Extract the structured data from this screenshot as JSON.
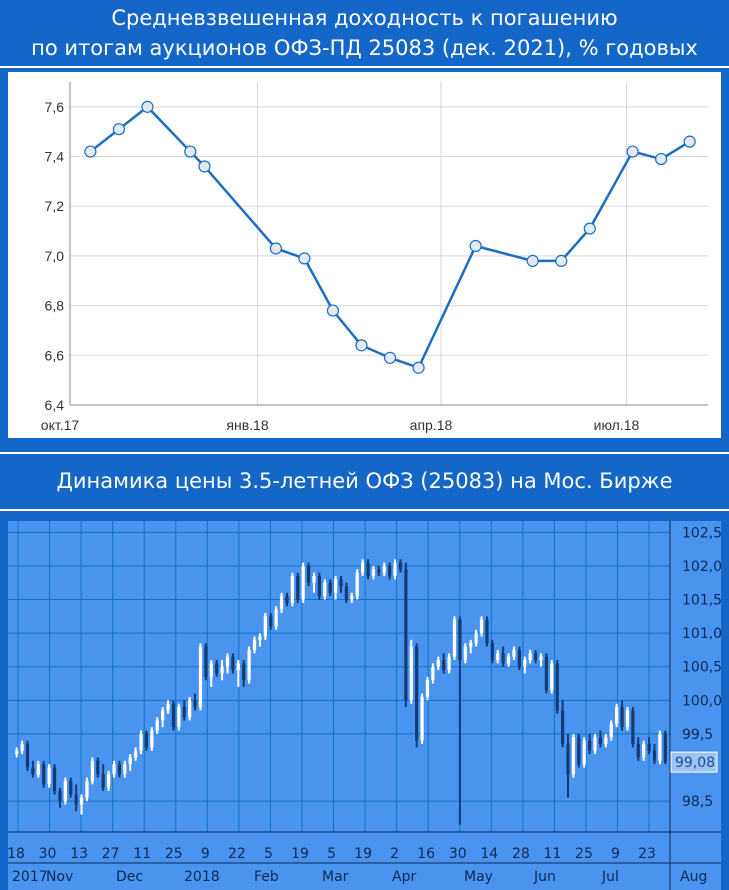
{
  "chart_data": [
    {
      "type": "line",
      "title": "Средневзвешенная доходность к погашению\nпо итогам аукционов ОФЗ-ПД 25083 (дек. 2021), % годовых",
      "title_lines": [
        "Средневзвешенная доходность к погашению",
        "по итогам аукционов ОФЗ-ПД 25083 (дек. 2021), % годовых"
      ],
      "x_tick_labels": [
        "окт.17",
        "янв.18",
        "апр.18",
        "июл.18"
      ],
      "y_tick_labels": [
        "6,4",
        "6,6",
        "6,8",
        "7,0",
        "7,2",
        "7,4",
        "7,6"
      ],
      "ylim": [
        6.4,
        7.7
      ],
      "grid": true,
      "series": [
        {
          "x": [
            "2017-10-11",
            "2017-10-25",
            "2017-11-08",
            "2017-11-29",
            "2017-12-06",
            "2018-01-10",
            "2018-01-24",
            "2018-02-07",
            "2018-02-21",
            "2018-03-07",
            "2018-03-21",
            "2018-04-18",
            "2018-05-16",
            "2018-05-30",
            "2018-06-13",
            "2018-07-04",
            "2018-07-18",
            "2018-08-01"
          ],
          "values": [
            7.42,
            7.51,
            7.6,
            7.42,
            7.36,
            7.03,
            6.99,
            6.78,
            6.64,
            6.59,
            6.55,
            7.04,
            6.98,
            6.98,
            7.11,
            7.42,
            7.39,
            7.46
          ]
        }
      ],
      "colors": {
        "line": "#1a6fc4",
        "marker_fill": "#e4eaf0",
        "marker_stroke": "#1a6fc4",
        "grid": "#d8d8d8"
      }
    },
    {
      "type": "candlestick",
      "title": "Динамика цены 3.5-летней ОФЗ (25083) на Мос. Бирже",
      "y_tick_labels": [
        "98,5",
        "99,5",
        "100,0",
        "100,5",
        "101,0",
        "101,5",
        "102,0",
        "102,5"
      ],
      "current_value_label": "99,08",
      "ylim": [
        98.1,
        102.55
      ],
      "x_day_labels": [
        "18",
        "30",
        "13",
        "27",
        "11",
        "25",
        "9",
        "22",
        "5",
        "19",
        "5",
        "19",
        "2",
        "16",
        "30",
        "14",
        "28",
        "11",
        "25",
        "9",
        "23"
      ],
      "x_month_labels": [
        "2017",
        "Nov",
        "Dec",
        "2018",
        "Feb",
        "Mar",
        "Apr",
        "May",
        "Jun",
        "Jul",
        "Aug"
      ],
      "grid": true,
      "series": [
        {
          "name": "",
          "values": [
            [
              99.2,
              99.3,
              99.15,
              99.25
            ],
            [
              99.25,
              99.4,
              99.2,
              99.35
            ],
            [
              99.35,
              99.4,
              98.95,
              99.0
            ],
            [
              99.0,
              99.1,
              98.85,
              98.9
            ],
            [
              98.9,
              99.1,
              98.85,
              99.05
            ],
            [
              99.05,
              99.1,
              98.7,
              98.75
            ],
            [
              98.75,
              99.05,
              98.7,
              99.0
            ],
            [
              99.0,
              99.05,
              98.6,
              98.65
            ],
            [
              98.65,
              98.7,
              98.4,
              98.5
            ],
            [
              98.5,
              98.85,
              98.45,
              98.8
            ],
            [
              98.8,
              98.85,
              98.55,
              98.6
            ],
            [
              98.6,
              98.75,
              98.35,
              98.45
            ],
            [
              98.45,
              98.6,
              98.3,
              98.55
            ],
            [
              98.55,
              98.85,
              98.5,
              98.8
            ],
            [
              98.8,
              99.15,
              98.75,
              99.1
            ],
            [
              99.1,
              99.15,
              98.85,
              98.9
            ],
            [
              98.9,
              99.05,
              98.65,
              98.7
            ],
            [
              98.7,
              98.95,
              98.65,
              98.9
            ],
            [
              98.9,
              99.1,
              98.85,
              99.05
            ],
            [
              99.05,
              99.1,
              98.85,
              98.9
            ],
            [
              98.9,
              99.1,
              98.85,
              99.05
            ],
            [
              99.05,
              99.2,
              98.95,
              99.15
            ],
            [
              99.15,
              99.3,
              99.1,
              99.25
            ],
            [
              99.25,
              99.55,
              99.2,
              99.5
            ],
            [
              99.5,
              99.55,
              99.25,
              99.3
            ],
            [
              99.3,
              99.6,
              99.25,
              99.55
            ],
            [
              99.55,
              99.75,
              99.5,
              99.7
            ],
            [
              99.7,
              99.9,
              99.6,
              99.85
            ],
            [
              99.85,
              100.0,
              99.8,
              99.95
            ],
            [
              99.95,
              100.0,
              99.55,
              99.6
            ],
            [
              99.6,
              99.95,
              99.55,
              99.9
            ],
            [
              99.9,
              100.0,
              99.7,
              99.75
            ],
            [
              99.75,
              100.05,
              99.7,
              100.0
            ],
            [
              100.0,
              100.1,
              99.85,
              99.9
            ],
            [
              99.9,
              100.85,
              99.85,
              100.8
            ],
            [
              100.8,
              100.85,
              100.3,
              100.35
            ],
            [
              100.35,
              100.6,
              100.2,
              100.55
            ],
            [
              100.55,
              100.6,
              100.35,
              100.4
            ],
            [
              100.4,
              100.6,
              100.3,
              100.5
            ],
            [
              100.5,
              100.7,
              100.4,
              100.65
            ],
            [
              100.65,
              100.7,
              100.4,
              100.45
            ],
            [
              100.45,
              100.6,
              100.2,
              100.55
            ],
            [
              100.55,
              100.6,
              100.2,
              100.3
            ],
            [
              100.3,
              100.8,
              100.25,
              100.75
            ],
            [
              100.75,
              100.95,
              100.7,
              100.9
            ],
            [
              100.9,
              101.0,
              100.8,
              100.95
            ],
            [
              100.95,
              101.3,
              100.9,
              101.25
            ],
            [
              101.25,
              101.3,
              101.05,
              101.1
            ],
            [
              101.1,
              101.4,
              101.05,
              101.35
            ],
            [
              101.35,
              101.6,
              101.3,
              101.55
            ],
            [
              101.55,
              101.6,
              101.4,
              101.45
            ],
            [
              101.45,
              101.9,
              101.4,
              101.85
            ],
            [
              101.85,
              101.9,
              101.45,
              101.5
            ],
            [
              101.5,
              102.05,
              101.45,
              102.0
            ],
            [
              102.0,
              102.05,
              101.7,
              101.75
            ],
            [
              101.75,
              101.9,
              101.6,
              101.85
            ],
            [
              101.85,
              101.9,
              101.5,
              101.55
            ],
            [
              101.55,
              101.8,
              101.5,
              101.75
            ],
            [
              101.75,
              101.8,
              101.55,
              101.6
            ],
            [
              101.6,
              101.85,
              101.5,
              101.8
            ],
            [
              101.8,
              101.85,
              101.6,
              101.7
            ],
            [
              101.7,
              101.75,
              101.45,
              101.5
            ],
            [
              101.5,
              101.6,
              101.45,
              101.55
            ],
            [
              101.55,
              101.95,
              101.5,
              101.9
            ],
            [
              101.9,
              102.1,
              101.85,
              102.05
            ],
            [
              102.05,
              102.1,
              101.8,
              101.85
            ],
            [
              101.85,
              102.0,
              101.8,
              101.95
            ],
            [
              101.95,
              102.0,
              101.85,
              101.9
            ],
            [
              101.9,
              102.05,
              101.85,
              102.0
            ],
            [
              102.0,
              102.05,
              101.8,
              101.85
            ],
            [
              101.85,
              102.1,
              101.8,
              102.05
            ],
            [
              102.05,
              102.1,
              101.9,
              101.95
            ],
            [
              101.95,
              102.05,
              99.9,
              100.0
            ],
            [
              100.0,
              100.9,
              99.95,
              100.8
            ],
            [
              100.8,
              100.85,
              99.3,
              99.4
            ],
            [
              99.4,
              100.1,
              99.35,
              100.05
            ],
            [
              100.05,
              100.35,
              100.0,
              100.3
            ],
            [
              100.3,
              100.55,
              100.25,
              100.5
            ],
            [
              100.5,
              100.65,
              100.45,
              100.6
            ],
            [
              100.6,
              100.7,
              100.4,
              100.45
            ],
            [
              100.45,
              100.7,
              100.4,
              100.65
            ],
            [
              100.65,
              101.25,
              100.6,
              101.2
            ],
            [
              101.2,
              101.25,
              98.15,
              100.6
            ],
            [
              100.6,
              100.85,
              100.55,
              100.8
            ],
            [
              100.8,
              100.9,
              100.7,
              100.85
            ],
            [
              100.85,
              101.05,
              100.8,
              101.0
            ],
            [
              101.0,
              101.25,
              100.95,
              101.2
            ],
            [
              101.2,
              101.25,
              100.8,
              100.85
            ],
            [
              100.85,
              100.9,
              100.55,
              100.6
            ],
            [
              100.6,
              100.75,
              100.55,
              100.7
            ],
            [
              100.7,
              100.8,
              100.5,
              100.55
            ],
            [
              100.55,
              100.7,
              100.5,
              100.65
            ],
            [
              100.65,
              100.8,
              100.6,
              100.75
            ],
            [
              100.75,
              100.8,
              100.45,
              100.5
            ],
            [
              100.5,
              100.65,
              100.4,
              100.6
            ],
            [
              100.6,
              100.75,
              100.55,
              100.7
            ],
            [
              100.7,
              100.75,
              100.55,
              100.6
            ],
            [
              100.6,
              100.7,
              100.5,
              100.65
            ],
            [
              100.65,
              100.7,
              100.1,
              100.15
            ],
            [
              100.15,
              100.6,
              100.1,
              100.55
            ],
            [
              100.55,
              100.6,
              99.8,
              99.85
            ],
            [
              99.85,
              100.0,
              99.3,
              99.35
            ],
            [
              99.35,
              99.5,
              98.55,
              98.9
            ],
            [
              98.9,
              99.5,
              98.85,
              99.45
            ],
            [
              99.45,
              99.5,
              99.0,
              99.05
            ],
            [
              99.05,
              99.45,
              99.0,
              99.4
            ],
            [
              99.4,
              99.5,
              99.2,
              99.25
            ],
            [
              99.25,
              99.5,
              99.2,
              99.45
            ],
            [
              99.45,
              99.55,
              99.3,
              99.35
            ],
            [
              99.35,
              99.5,
              99.3,
              99.45
            ],
            [
              99.45,
              99.7,
              99.4,
              99.65
            ],
            [
              99.65,
              99.95,
              99.6,
              99.9
            ],
            [
              99.9,
              100.0,
              99.55,
              99.6
            ],
            [
              99.6,
              99.9,
              99.55,
              99.85
            ],
            [
              99.85,
              99.9,
              99.3,
              99.35
            ],
            [
              99.35,
              99.45,
              99.1,
              99.15
            ],
            [
              99.15,
              99.4,
              99.1,
              99.35
            ],
            [
              99.35,
              99.45,
              99.2,
              99.25
            ],
            [
              99.25,
              99.35,
              99.05,
              99.1
            ],
            [
              99.1,
              99.55,
              99.05,
              99.5
            ],
            [
              99.5,
              99.55,
              99.05,
              99.08
            ]
          ],
          "format": "open, high, low, close"
        }
      ],
      "colors": {
        "up": "#ffffff",
        "down": "#123c78",
        "grid": "#0f73c8",
        "background": "#4a94f0"
      }
    }
  ]
}
